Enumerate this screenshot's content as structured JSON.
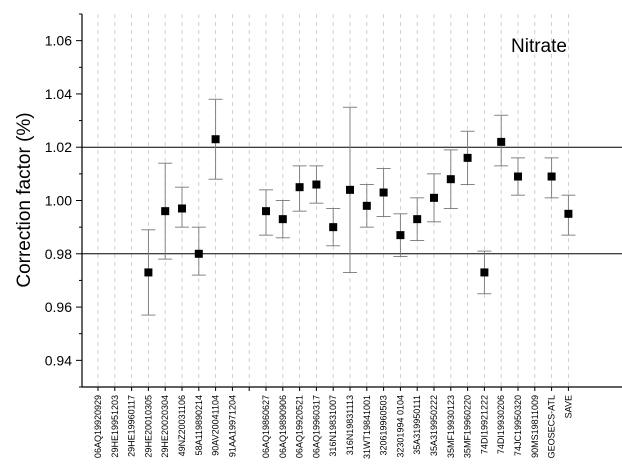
{
  "chart_data": {
    "type": "scatter",
    "title": "",
    "annotation": "Nitrate",
    "xlabel": "",
    "ylabel": "Correction factor (%)",
    "ylim": [
      0.93,
      1.07
    ],
    "yticks": [
      "0.94",
      "0.96",
      "0.98",
      "1.00",
      "1.02",
      "1.04",
      "1.06"
    ],
    "reference_lines": [
      0.98,
      1.02
    ],
    "grid": "vertical dashed",
    "categories": [
      "06AQ19920929",
      "29HE19951203",
      "29HE19960117",
      "29HE20010305",
      "29HE20020304",
      "49NZ20031106",
      "58A119890214",
      "90AV20041104",
      "91AA19971204",
      "",
      "06AQ19860627",
      "06AQ19890906",
      "06AQ19920521",
      "06AQ19960317",
      "316N19831007",
      "316N19831113",
      "31WT19841001",
      "32061996050З",
      "32301994 0104",
      "35A319950111",
      "35A319950222",
      "35MF19930123",
      "35MF19960220",
      "74DI19921222",
      "74DI19930206",
      "74JC19950320",
      "90MS19811009",
      "GEOSECS-ATL",
      "SAVE"
    ],
    "series": [
      {
        "points": [
          {
            "category": "29HE20010305",
            "y": 0.973,
            "lo": 0.957,
            "hi": 0.989
          },
          {
            "category": "29HE20020304",
            "y": 0.996,
            "lo": 0.978,
            "hi": 1.014
          },
          {
            "category": "49NZ20031106",
            "y": 0.997,
            "lo": 0.99,
            "hi": 1.005
          },
          {
            "category": "58A119890214",
            "y": 0.98,
            "lo": 0.972,
            "hi": 0.99
          },
          {
            "category": "90AV20041104",
            "y": 1.023,
            "lo": 1.008,
            "hi": 1.038
          },
          {
            "category": "06AQ19860627",
            "y": 0.996,
            "lo": 0.987,
            "hi": 1.004
          },
          {
            "category": "06AQ19890906",
            "y": 0.993,
            "lo": 0.986,
            "hi": 1.0
          },
          {
            "category": "06AQ19920521",
            "y": 1.005,
            "lo": 0.996,
            "hi": 1.013
          },
          {
            "category": "06AQ19960317",
            "y": 1.006,
            "lo": 0.999,
            "hi": 1.013
          },
          {
            "category": "316N19831007",
            "y": 0.99,
            "lo": 0.983,
            "hi": 0.997
          },
          {
            "category": "316N19831113",
            "y": 1.004,
            "lo": 0.973,
            "hi": 1.035
          },
          {
            "category": "31WT19841001",
            "y": 0.998,
            "lo": 0.99,
            "hi": 1.006
          },
          {
            "category": "32061996050З",
            "y": 1.003,
            "lo": 0.994,
            "hi": 1.012
          },
          {
            "category": "32301994 0104",
            "y": 0.987,
            "lo": 0.979,
            "hi": 0.995
          },
          {
            "category": "35A319950111",
            "y": 0.993,
            "lo": 0.985,
            "hi": 1.001
          },
          {
            "category": "35A319950222",
            "y": 1.001,
            "lo": 0.992,
            "hi": 1.01
          },
          {
            "category": "35MF19930123",
            "y": 1.008,
            "lo": 0.997,
            "hi": 1.019
          },
          {
            "category": "35MF19960220",
            "y": 1.016,
            "lo": 1.006,
            "hi": 1.026
          },
          {
            "category": "74DI19921222",
            "y": 0.973,
            "lo": 0.965,
            "hi": 0.981
          },
          {
            "category": "74DI19930206",
            "y": 1.022,
            "lo": 1.013,
            "hi": 1.032
          },
          {
            "category": "74JC19950320",
            "y": 1.009,
            "lo": 1.002,
            "hi": 1.016
          },
          {
            "category": "GEOSECS-ATL",
            "y": 1.009,
            "lo": 1.001,
            "hi": 1.016
          },
          {
            "category": "SAVE",
            "y": 0.995,
            "lo": 0.987,
            "hi": 1.002
          }
        ]
      }
    ]
  }
}
